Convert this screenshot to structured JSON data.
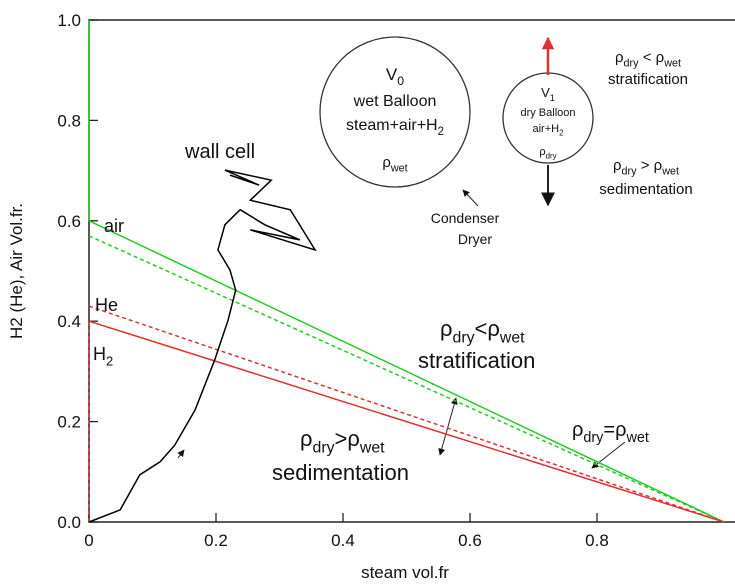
{
  "chart_data": {
    "type": "line",
    "x_label": "steam vol.fr",
    "y_label": "H2 (He), Air Vol.fr.",
    "xlim": [
      0,
      1
    ],
    "ylim": [
      0,
      1
    ],
    "xticks": [
      0,
      0.2,
      0.4,
      0.6,
      0.8
    ],
    "yticks": [
      {
        "value": 0,
        "label": "0.0"
      },
      0.2,
      0.4,
      0.6,
      0.8,
      {
        "value": 1,
        "label": "1.0"
      }
    ],
    "series": [
      {
        "color": "#22cc22",
        "dash": false,
        "x": [
          0,
          0
        ],
        "values": [
          0.6,
          1
        ]
      },
      {
        "color": "#22cc22",
        "dash": false,
        "x": [
          0,
          1
        ],
        "values": [
          0.6,
          0
        ]
      },
      {
        "color": "#22cc22",
        "dash": true,
        "x": [
          0,
          1
        ],
        "values": [
          0.57,
          0
        ]
      },
      {
        "color": "#e03030",
        "dash": true,
        "x": [
          0,
          1
        ],
        "values": [
          0.43,
          0
        ]
      },
      {
        "color": "#e03030",
        "dash": false,
        "x": [
          0,
          1
        ],
        "values": [
          0.4,
          0
        ]
      },
      {
        "color": "#e03030",
        "dash": true,
        "x": [
          0,
          0
        ],
        "values": [
          0,
          0.4
        ]
      },
      {
        "color": "#000000",
        "dash": false,
        "x": [
          0,
          0.049,
          0.08,
          0.112,
          0.135,
          0.167,
          0.198,
          0.219,
          0.231,
          0.222,
          0.203,
          0.214,
          0.238,
          0.277,
          0.332,
          0.254,
          0.356,
          0.317,
          0.254,
          0.287,
          0.214,
          0.268,
          0.222
        ],
        "values": [
          0,
          0.024,
          0.094,
          0.12,
          0.153,
          0.223,
          0.323,
          0.402,
          0.462,
          0.502,
          0.542,
          0.592,
          0.622,
          0.592,
          0.562,
          0.582,
          0.542,
          0.622,
          0.641,
          0.681,
          0.701,
          0.671,
          0.691
        ]
      }
    ],
    "annotations": [
      [
        "wall cell"
      ],
      [
        "air"
      ],
      [
        "He"
      ],
      [
        "H",
        {
          "sub": "2"
        }
      ],
      [
        "ρ",
        {
          "sub": "dry"
        },
        "<ρ",
        {
          "sub": "wet"
        }
      ],
      [
        "stratification"
      ],
      [
        "ρ",
        {
          "sub": "dry"
        },
        ">ρ",
        {
          "sub": "wet"
        }
      ],
      [
        "sedimentation"
      ],
      [
        "ρ",
        {
          "sub": "dry"
        },
        "=ρ",
        {
          "sub": "wet"
        }
      ],
      [
        "V",
        {
          "sub": "0"
        }
      ],
      [
        "wet Balloon"
      ],
      [
        "steam+air+H",
        {
          "sub": "2"
        }
      ],
      [
        "ρ",
        {
          "sub": "wet"
        }
      ],
      [
        "V",
        {
          "sub": "1"
        }
      ],
      [
        "dry  Balloon"
      ],
      [
        "air+H",
        {
          "sub": "2"
        }
      ],
      [
        "ρ",
        {
          "sub": "dry"
        }
      ],
      [
        "Condenser"
      ],
      [
        "Dryer"
      ],
      [
        "ρ",
        {
          "sub": "dry"
        },
        " < ρ",
        {
          "sub": "wet"
        }
      ],
      [
        "stratification"
      ],
      [
        "ρ",
        {
          "sub": "dry"
        },
        " > ρ",
        {
          "sub": "wet"
        }
      ],
      [
        "sedimentation"
      ]
    ]
  }
}
